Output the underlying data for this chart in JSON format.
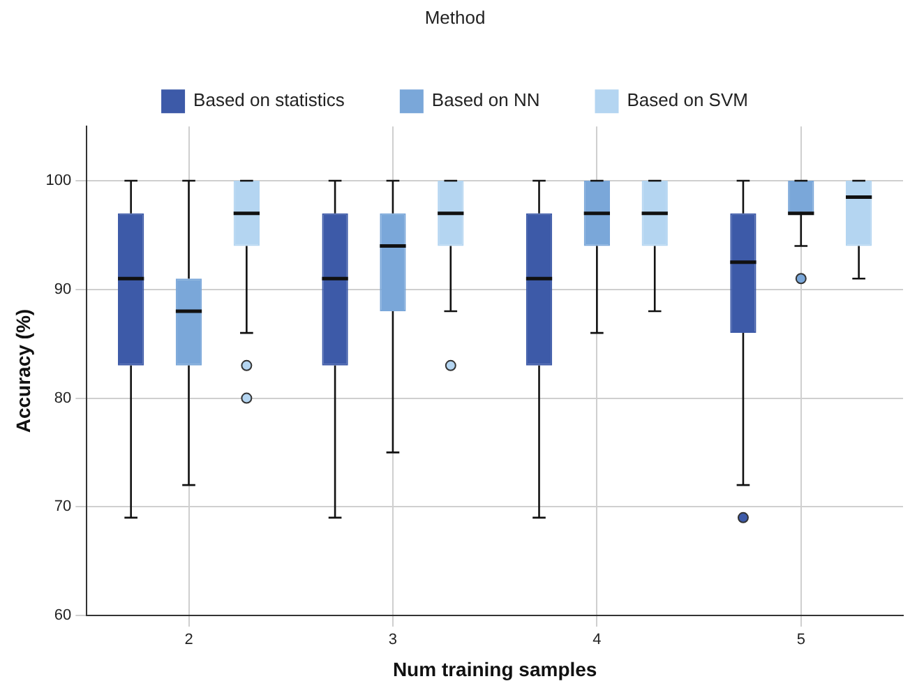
{
  "chart_data": {
    "type": "box",
    "xlabel": "Num training samples",
    "ylabel": "Accuracy (%)",
    "legend_title": "Method",
    "legend": "top",
    "grid": true,
    "categories": [
      "2",
      "3",
      "4",
      "5"
    ],
    "ylim": [
      60,
      105
    ],
    "yticks": [
      60,
      70,
      80,
      90,
      100
    ],
    "series": [
      {
        "name": "Based on statistics",
        "color": "#3d5aa8",
        "boxes": [
          {
            "low": 69,
            "q1": 83,
            "median": 91,
            "q3": 97,
            "high": 100
          },
          {
            "low": 69,
            "q1": 83,
            "median": 91,
            "q3": 97,
            "high": 100
          },
          {
            "low": 69,
            "q1": 83,
            "median": 91,
            "q3": 97,
            "high": 100
          },
          {
            "low": 72,
            "q1": 86,
            "median": 92.5,
            "q3": 97,
            "high": 100,
            "outliers": [
              69
            ]
          }
        ]
      },
      {
        "name": "Based on NN",
        "color": "#7aa7d9",
        "boxes": [
          {
            "low": 72,
            "q1": 83,
            "median": 88,
            "q3": 91,
            "high": 100
          },
          {
            "low": 75,
            "q1": 88,
            "median": 94,
            "q3": 97,
            "high": 100
          },
          {
            "low": 86,
            "q1": 94,
            "median": 97,
            "q3": 100,
            "high": 100
          },
          {
            "low": 94,
            "q1": 97,
            "median": 97,
            "q3": 100,
            "high": 100,
            "outliers": [
              91
            ]
          }
        ]
      },
      {
        "name": "Based on SVM",
        "color": "#b4d5f1",
        "boxes": [
          {
            "low": 86,
            "q1": 94,
            "median": 97,
            "q3": 100,
            "high": 100,
            "outliers": [
              83,
              80
            ]
          },
          {
            "low": 88,
            "q1": 94,
            "median": 97,
            "q3": 100,
            "high": 100,
            "outliers": [
              83
            ]
          },
          {
            "low": 88,
            "q1": 94,
            "median": 97,
            "q3": 100,
            "high": 100
          },
          {
            "low": 91,
            "q1": 94,
            "median": 98.5,
            "q3": 100,
            "high": 100
          }
        ]
      }
    ]
  }
}
